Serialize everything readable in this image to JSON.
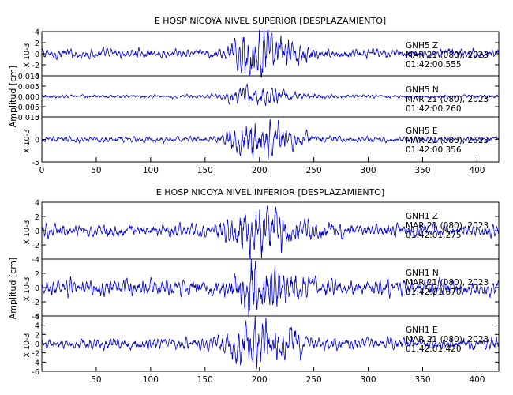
{
  "chart_data": [
    {
      "type": "line",
      "title": "E HOSP NICOYA NIVEL SUPERIOR [DESPLAZAMIENTO]",
      "ylabel": "Amplitud [cm]",
      "xlabel": "",
      "xlim": [
        0,
        420
      ],
      "x_ticks": [
        "0",
        "50",
        "100",
        "150",
        "200",
        "250",
        "300",
        "350",
        "400"
      ],
      "line_color": "#0000cc",
      "grid": false,
      "traces": [
        {
          "station": "GNH5",
          "component": "Z",
          "date": "MAR 21 (080), 2023",
          "time": "01:42:00.555",
          "y_scale_label": "X 10-3",
          "ylim": [
            -4,
            4
          ],
          "y_ticks": [
            "4",
            "2",
            "0",
            "-2",
            "-4"
          ],
          "peak_amplitude": 4.5,
          "background_amplitude": 0.8,
          "peak_time": 195
        },
        {
          "station": "GNH5",
          "component": "N",
          "date": "MAR 21 (080), 2023",
          "time": "01:42:00.260",
          "y_scale_label": "",
          "ylim": [
            -0.01,
            0.01
          ],
          "y_ticks": [
            "0.010",
            "0.005",
            "0.000",
            "-0.005",
            "-0.010"
          ],
          "peak_amplitude": 0.0045,
          "background_amplitude": 0.0008,
          "peak_time": 190
        },
        {
          "station": "GNH5",
          "component": "E",
          "date": "MAR 21 (080), 2023",
          "time": "01:42:00.356",
          "y_scale_label": "X 10-3",
          "ylim": [
            -5,
            5
          ],
          "y_ticks": [
            "5",
            "0",
            "-5"
          ],
          "peak_amplitude": 4.5,
          "background_amplitude": 0.6,
          "peak_time": 192
        }
      ]
    },
    {
      "type": "line",
      "title": "E HOSP NICOYA NIVEL INFERIOR [DESPLAZAMIENTO]",
      "ylabel": "Amplitud [cm]",
      "xlabel": "",
      "xlim": [
        0,
        420
      ],
      "x_ticks": [
        "50",
        "100",
        "150",
        "200",
        "250",
        "300",
        "350",
        "400"
      ],
      "line_color": "#0000cc",
      "grid": false,
      "traces": [
        {
          "station": "GNH1",
          "component": "Z",
          "date": "MAR 21 (080), 2023",
          "time": "01:42:01.275",
          "y_scale_label": "X 10-3",
          "ylim": [
            -4,
            4
          ],
          "y_ticks": [
            "4",
            "2",
            "0",
            "-2",
            "-4"
          ],
          "peak_amplitude": 3.8,
          "background_amplitude": 0.9,
          "peak_time": 195
        },
        {
          "station": "GNH1",
          "component": "N",
          "date": "MAR 21 (080), 2023",
          "time": "01:42:01.670",
          "y_scale_label": "X 10-3",
          "ylim": [
            -4,
            4
          ],
          "y_ticks": [
            "4",
            "2",
            "0",
            "-2",
            "-4"
          ],
          "peak_amplitude": 3.8,
          "background_amplitude": 1.1,
          "peak_time": 195
        },
        {
          "station": "GNH1",
          "component": "E",
          "date": "MAR 21 (080), 2023",
          "time": "01:42:01.420",
          "y_scale_label": "X 10-3",
          "ylim": [
            -6,
            6
          ],
          "y_ticks": [
            "6",
            "4",
            "2",
            "0",
            "-2",
            "-4",
            "-6"
          ],
          "peak_amplitude": 5.5,
          "background_amplitude": 1.2,
          "peak_time": 192
        }
      ]
    }
  ]
}
